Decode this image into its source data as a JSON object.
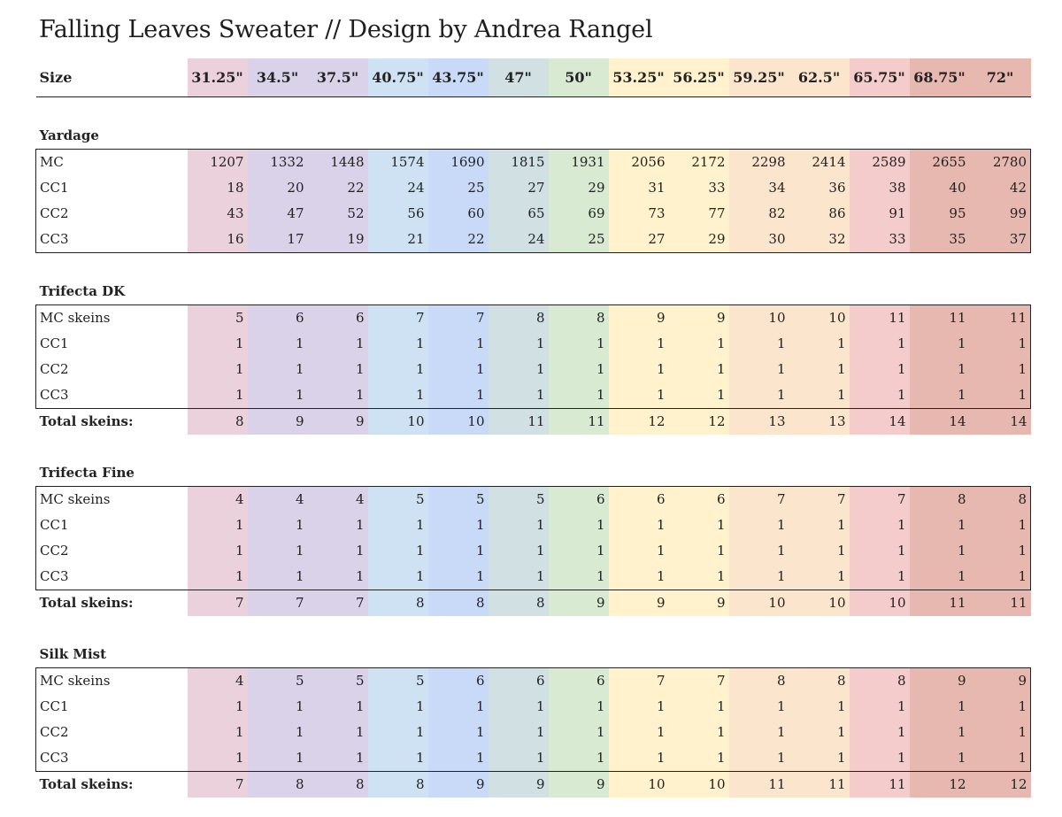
{
  "title": "Falling Leaves Sweater // Design by Andrea Rangel",
  "size_label": "Size",
  "sizes": [
    "31.25\"",
    "34.5\"",
    "37.5\"",
    "40.75\"",
    "43.75\"",
    "47\"",
    "50\"",
    "53.25\"",
    "56.25\"",
    "59.25\"",
    "62.5\"",
    "65.75\"",
    "68.75\"",
    "72\""
  ],
  "column_colors": [
    "#ead1dc",
    "#d9d2e9",
    "#d9d2e9",
    "#cfe2f3",
    "#c9daf8",
    "#d0e0e3",
    "#d9ead3",
    "#fff2cc",
    "#fff2cc",
    "#fce5cd",
    "#fce5cd",
    "#f4cccc",
    "#e6b8af",
    "#e6b8af"
  ],
  "sections": [
    {
      "heading": "Yardage",
      "rows": [
        {
          "label": "MC",
          "values": [
            "1207",
            "1332",
            "1448",
            "1574",
            "1690",
            "1815",
            "1931",
            "2056",
            "2172",
            "2298",
            "2414",
            "2589",
            "2655",
            "2780"
          ]
        },
        {
          "label": "CC1",
          "values": [
            "18",
            "20",
            "22",
            "24",
            "25",
            "27",
            "29",
            "31",
            "33",
            "34",
            "36",
            "38",
            "40",
            "42"
          ]
        },
        {
          "label": "CC2",
          "values": [
            "43",
            "47",
            "52",
            "56",
            "60",
            "65",
            "69",
            "73",
            "77",
            "82",
            "86",
            "91",
            "95",
            "99"
          ]
        },
        {
          "label": "CC3",
          "values": [
            "16",
            "17",
            "19",
            "21",
            "22",
            "24",
            "25",
            "27",
            "29",
            "30",
            "32",
            "33",
            "35",
            "37"
          ]
        }
      ]
    },
    {
      "heading": "Trifecta DK",
      "rows": [
        {
          "label": "MC skeins",
          "values": [
            "5",
            "6",
            "6",
            "7",
            "7",
            "8",
            "8",
            "9",
            "9",
            "10",
            "10",
            "11",
            "11",
            "11"
          ]
        },
        {
          "label": "CC1",
          "values": [
            "1",
            "1",
            "1",
            "1",
            "1",
            "1",
            "1",
            "1",
            "1",
            "1",
            "1",
            "1",
            "1",
            "1"
          ]
        },
        {
          "label": "CC2",
          "values": [
            "1",
            "1",
            "1",
            "1",
            "1",
            "1",
            "1",
            "1",
            "1",
            "1",
            "1",
            "1",
            "1",
            "1"
          ]
        },
        {
          "label": "CC3",
          "values": [
            "1",
            "1",
            "1",
            "1",
            "1",
            "1",
            "1",
            "1",
            "1",
            "1",
            "1",
            "1",
            "1",
            "1"
          ]
        }
      ],
      "total": {
        "label": "Total skeins:",
        "values": [
          "8",
          "9",
          "9",
          "10",
          "10",
          "11",
          "11",
          "12",
          "12",
          "13",
          "13",
          "14",
          "14",
          "14"
        ]
      }
    },
    {
      "heading": "Trifecta Fine",
      "rows": [
        {
          "label": "MC skeins",
          "values": [
            "4",
            "4",
            "4",
            "5",
            "5",
            "5",
            "6",
            "6",
            "6",
            "7",
            "7",
            "7",
            "8",
            "8"
          ]
        },
        {
          "label": "CC1",
          "values": [
            "1",
            "1",
            "1",
            "1",
            "1",
            "1",
            "1",
            "1",
            "1",
            "1",
            "1",
            "1",
            "1",
            "1"
          ]
        },
        {
          "label": "CC2",
          "values": [
            "1",
            "1",
            "1",
            "1",
            "1",
            "1",
            "1",
            "1",
            "1",
            "1",
            "1",
            "1",
            "1",
            "1"
          ]
        },
        {
          "label": "CC3",
          "values": [
            "1",
            "1",
            "1",
            "1",
            "1",
            "1",
            "1",
            "1",
            "1",
            "1",
            "1",
            "1",
            "1",
            "1"
          ]
        }
      ],
      "total": {
        "label": "Total skeins:",
        "values": [
          "7",
          "7",
          "7",
          "8",
          "8",
          "8",
          "9",
          "9",
          "9",
          "10",
          "10",
          "10",
          "11",
          "11"
        ]
      }
    },
    {
      "heading": "Silk Mist",
      "rows": [
        {
          "label": "MC skeins",
          "values": [
            "4",
            "5",
            "5",
            "5",
            "6",
            "6",
            "6",
            "7",
            "7",
            "8",
            "8",
            "8",
            "9",
            "9"
          ]
        },
        {
          "label": "CC1",
          "values": [
            "1",
            "1",
            "1",
            "1",
            "1",
            "1",
            "1",
            "1",
            "1",
            "1",
            "1",
            "1",
            "1",
            "1"
          ]
        },
        {
          "label": "CC2",
          "values": [
            "1",
            "1",
            "1",
            "1",
            "1",
            "1",
            "1",
            "1",
            "1",
            "1",
            "1",
            "1",
            "1",
            "1"
          ]
        },
        {
          "label": "CC3",
          "values": [
            "1",
            "1",
            "1",
            "1",
            "1",
            "1",
            "1",
            "1",
            "1",
            "1",
            "1",
            "1",
            "1",
            "1"
          ]
        }
      ],
      "total": {
        "label": "Total skeins:",
        "values": [
          "7",
          "8",
          "8",
          "8",
          "9",
          "9",
          "9",
          "10",
          "10",
          "11",
          "11",
          "11",
          "12",
          "12"
        ]
      }
    }
  ]
}
